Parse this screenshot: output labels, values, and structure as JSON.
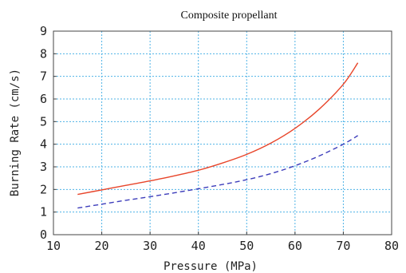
{
  "chart_data": {
    "type": "line",
    "title": "Composite propellant",
    "xlabel": "Pressure (MPa)",
    "ylabel": "Burning Rate (cm/s)",
    "xlim": [
      10,
      80
    ],
    "ylim": [
      0,
      9
    ],
    "xticks": [
      "10",
      "20",
      "30",
      "40",
      "50",
      "60",
      "70",
      "80"
    ],
    "yticks": [
      "0",
      "1",
      "2",
      "3",
      "4",
      "5",
      "6",
      "7",
      "8",
      "9"
    ],
    "grid": true,
    "series": [
      {
        "color": "#e8452a",
        "style": "solid",
        "x": [
          15,
          20,
          25,
          30,
          35,
          40,
          45,
          50,
          55,
          60,
          65,
          70,
          73
        ],
        "y": [
          1.78,
          1.98,
          2.18,
          2.38,
          2.6,
          2.85,
          3.17,
          3.55,
          4.05,
          4.7,
          5.55,
          6.65,
          7.6
        ]
      },
      {
        "color": "#3d3dbb",
        "style": "dashed",
        "x": [
          15,
          20,
          25,
          30,
          35,
          40,
          45,
          50,
          55,
          60,
          65,
          70,
          73
        ],
        "y": [
          1.18,
          1.35,
          1.52,
          1.68,
          1.85,
          2.03,
          2.22,
          2.43,
          2.7,
          3.05,
          3.48,
          4.0,
          4.38
        ]
      }
    ]
  }
}
